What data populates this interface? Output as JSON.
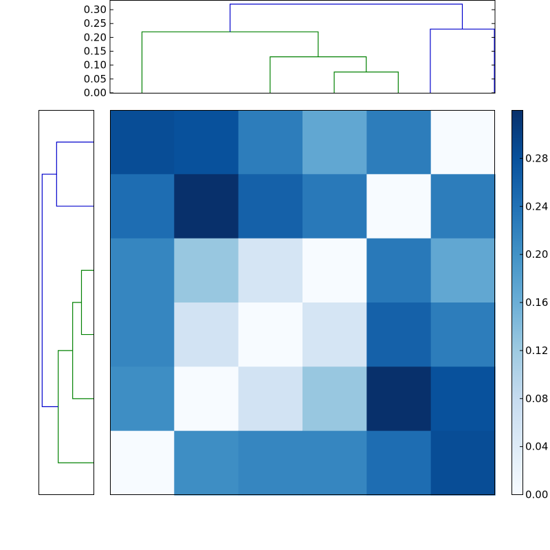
{
  "chart_data": [
    {
      "type": "dendrogram",
      "orientation": "top",
      "ylim": [
        0,
        0.33
      ],
      "yticks": [
        "0.00",
        "0.05",
        "0.10",
        "0.15",
        "0.20",
        "0.25",
        "0.30"
      ],
      "leaves": 6,
      "links": [
        {
          "left": 3,
          "right": 4,
          "height": 0.075,
          "color": "#008000"
        },
        {
          "left": 2,
          "right": 3.5,
          "height": 0.13,
          "color": "#008000"
        },
        {
          "left": 0,
          "right": 2.75,
          "height": 0.22,
          "color": "#008000"
        },
        {
          "left": 4.5,
          "right": 5.5,
          "height": 0.23,
          "color": "#0000cc"
        },
        {
          "left": 1.375,
          "right": 5,
          "height": 0.32,
          "color": "#0000cc"
        }
      ],
      "leaf_positions": [
        0,
        2,
        3,
        4,
        4.5,
        5.5
      ],
      "colors": {
        "cluster_a": "#008000",
        "cluster_b": "#0000cc"
      }
    },
    {
      "type": "dendrogram",
      "orientation": "left",
      "links": [
        {
          "a": 0.5,
          "b": 1.5,
          "height": 0.23,
          "color": "#0000cc"
        },
        {
          "a": 2.5,
          "b": 3.5,
          "height": 0.075,
          "color": "#008000"
        },
        {
          "a": 3.0,
          "b": 4.5,
          "height": 0.13,
          "color": "#008000"
        },
        {
          "a": 3.75,
          "b": 5.5,
          "height": 0.22,
          "color": "#008000"
        },
        {
          "a": 1.0,
          "b": 4.625,
          "height": 0.32,
          "color": "#0000cc"
        }
      ]
    },
    {
      "type": "heatmap",
      "rows": 6,
      "cols": 6,
      "values": [
        [
          0.285,
          0.28,
          0.225,
          0.17,
          0.225,
          0.0
        ],
        [
          0.245,
          0.32,
          0.26,
          0.23,
          0.0,
          0.225
        ],
        [
          0.215,
          0.125,
          0.055,
          0.0,
          0.23,
          0.17
        ],
        [
          0.215,
          0.06,
          0.0,
          0.055,
          0.26,
          0.225
        ],
        [
          0.205,
          0.0,
          0.06,
          0.125,
          0.32,
          0.28
        ],
        [
          0.0,
          0.205,
          0.215,
          0.215,
          0.245,
          0.285
        ]
      ],
      "vmin": 0.0,
      "vmax": 0.32,
      "colormap": "Blues",
      "colorbar_ticks": [
        "0.00",
        "0.04",
        "0.08",
        "0.12",
        "0.16",
        "0.20",
        "0.24",
        "0.28"
      ]
    }
  ]
}
